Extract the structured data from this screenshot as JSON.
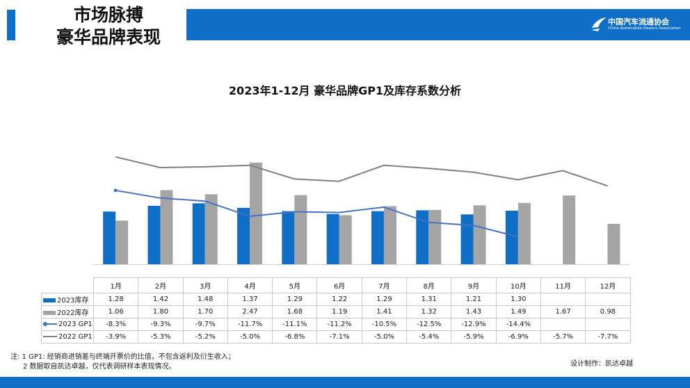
{
  "header": {
    "title_lines": [
      "市场脉搏",
      "豪华品牌表现"
    ],
    "logo_cn": "中国汽车流通协会",
    "logo_en": "China Automobile Dealers Association"
  },
  "colors": {
    "brand_blue": "#0f6ec5",
    "series_2022_bar": "#a5a5a5",
    "gp1_2023": "#4472c4",
    "gp1_2022": "#7f7f7f"
  },
  "chart_data": {
    "type": "bar",
    "title": "2023年1-12月 豪华品牌GP1及库存系数分析",
    "categories": [
      "1月",
      "2月",
      "3月",
      "4月",
      "5月",
      "6月",
      "7月",
      "8月",
      "9月",
      "10月",
      "11月",
      "12月"
    ],
    "series": [
      {
        "name": "2023库存",
        "type": "bar",
        "display": [
          "1.28",
          "1.42",
          "1.48",
          "1.37",
          "1.29",
          "1.22",
          "1.29",
          "1.31",
          "1.21",
          "1.30",
          "",
          ""
        ],
        "values": [
          1.28,
          1.42,
          1.48,
          1.37,
          1.29,
          1.22,
          1.29,
          1.31,
          1.21,
          1.3,
          null,
          null
        ]
      },
      {
        "name": "2022库存",
        "type": "bar",
        "display": [
          "1.06",
          "1.80",
          "1.70",
          "2.47",
          "1.68",
          "1.19",
          "1.41",
          "1.32",
          "1.43",
          "1.49",
          "1.67",
          "0.98"
        ],
        "values": [
          1.06,
          1.8,
          1.7,
          2.47,
          1.68,
          1.19,
          1.41,
          1.32,
          1.43,
          1.49,
          1.67,
          0.98
        ]
      },
      {
        "name": "2023 GP1",
        "type": "line",
        "marker": true,
        "display": [
          "-8.3%",
          "-9.3%",
          "-9.7%",
          "-11.7%",
          "-11.1%",
          "-11.2%",
          "-10.5%",
          "-12.5%",
          "-12.9%",
          "-14.4%",
          "",
          ""
        ],
        "values": [
          -8.3,
          -9.3,
          -9.7,
          -11.7,
          -11.1,
          -11.2,
          -10.5,
          -12.5,
          -12.9,
          -14.4,
          null,
          null
        ]
      },
      {
        "name": "2022 GP1",
        "type": "line",
        "marker": false,
        "display": [
          "-3.9%",
          "-5.3%",
          "-5.2%",
          "-5.0%",
          "-6.8%",
          "-7.1%",
          "-5.0%",
          "-5.4%",
          "-5.9%",
          "-6.9%",
          "-5.7%",
          "-7.7%"
        ],
        "values": [
          -3.9,
          -5.3,
          -5.2,
          -5.0,
          -6.8,
          -7.1,
          -5.0,
          -5.4,
          -5.9,
          -6.9,
          -5.7,
          -7.7
        ]
      }
    ],
    "bar_axis_range": [
      0,
      2.5
    ],
    "line_axis_range": [
      -18,
      0
    ],
    "grid": false,
    "legend": "data-table"
  },
  "footnote": {
    "line1": "注: 1  GP1: 经销商进销差与终端开票价的比值，不包含返利及衍生收入；",
    "line2": "2 数据取自凯达卓越，仅代表调研样本表现情况。"
  },
  "credit": "设计制作：凯达卓越"
}
